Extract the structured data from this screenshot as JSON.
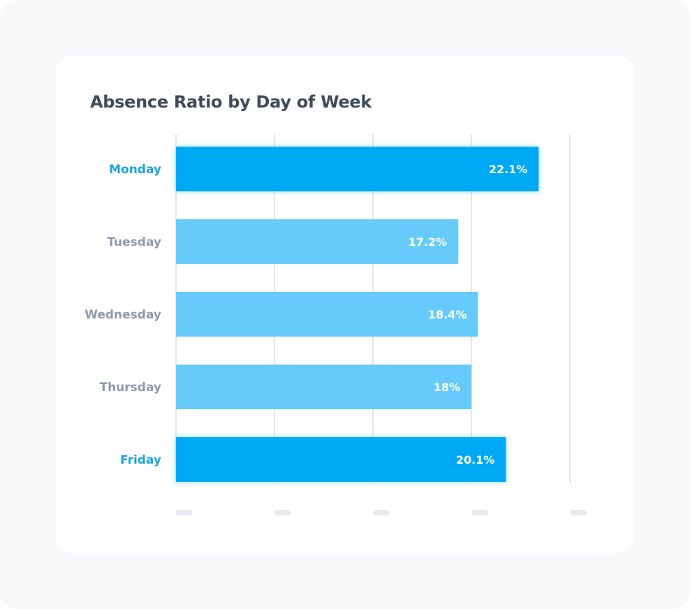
{
  "chart_data": {
    "type": "bar",
    "orientation": "horizontal",
    "title": "Absence Ratio by Day of Week",
    "categories": [
      "Monday",
      "Tuesday",
      "Wednesday",
      "Thursday",
      "Friday"
    ],
    "values": [
      22.1,
      17.2,
      18.4,
      18,
      20.1
    ],
    "value_labels": [
      "22.1%",
      "17.2%",
      "18.4%",
      "18%",
      "20.1%"
    ],
    "highlighted": [
      "Monday",
      "Friday"
    ],
    "xlim": [
      0,
      24
    ],
    "x_tick_count": 5,
    "x_tick_labels_visible": false,
    "grid": true,
    "colors": {
      "bar_highlight": "#03a9f4",
      "bar_normal": "#66cbfb",
      "label_highlight": "#1aa6e4",
      "label_normal": "#8e9ab0",
      "grid": "#e3e6ea",
      "tick_placeholder": "#e6eaf0"
    }
  }
}
